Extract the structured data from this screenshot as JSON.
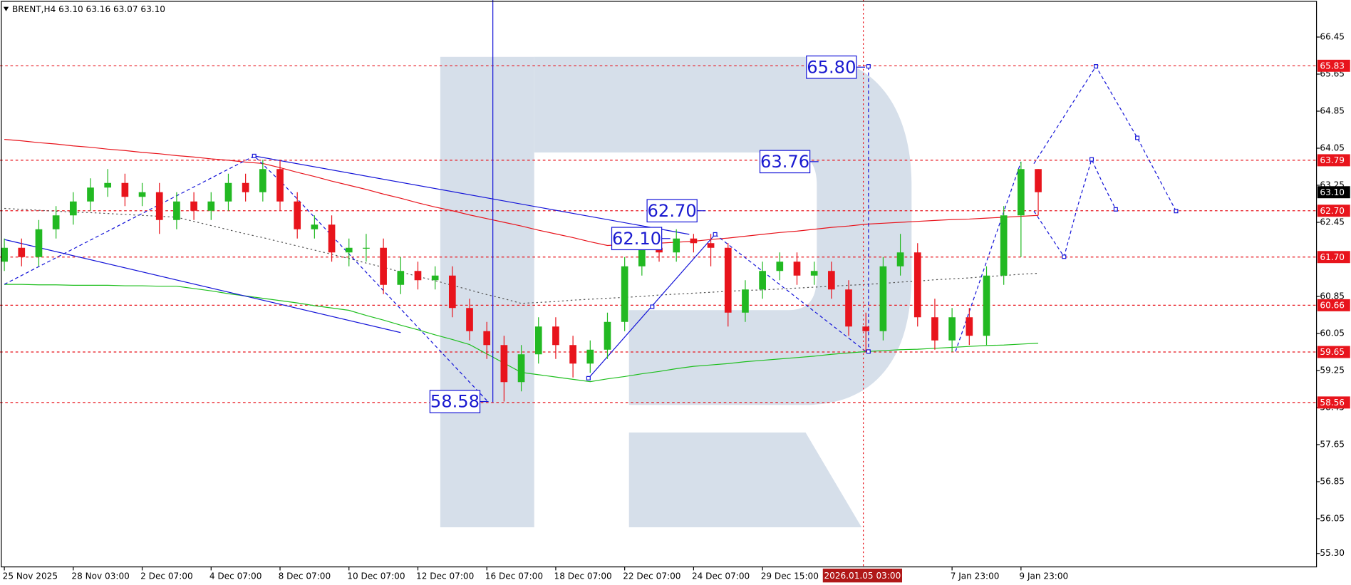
{
  "chart_data": {
    "type": "candlestick",
    "title": "BRENT,H4 63.10 63.16 63.07 63.10",
    "categories": [
      "25 Nov 2025",
      null,
      null,
      null,
      "28 Nov 03:00",
      null,
      null,
      null,
      "2 Dec 07:00",
      null,
      null,
      null,
      "4 Dec 07:00",
      null,
      null,
      null,
      "8 Dec 07:00",
      null,
      null,
      null,
      "10 Dec 07:00",
      null,
      null,
      null,
      "12 Dec 07:00",
      null,
      null,
      null,
      "16 Dec 07:00",
      null,
      null,
      null,
      "18 Dec 07:00",
      null,
      null,
      null,
      "22 Dec 07:00",
      null,
      null,
      null,
      "24 Dec 07:00",
      null,
      null,
      null,
      "29 Dec 15:00",
      null,
      null,
      null,
      null,
      null,
      null,
      null,
      null,
      null,
      null,
      "7 Jan 23:00",
      null,
      null,
      null,
      "9 Jan 23:00",
      null
    ],
    "open": [
      61.6,
      61.9,
      61.7,
      62.3,
      62.6,
      62.9,
      63.2,
      63.3,
      63.0,
      63.1,
      62.5,
      62.9,
      62.7,
      62.9,
      63.3,
      63.1,
      63.6,
      62.9,
      62.3,
      62.4,
      61.8,
      61.9,
      61.9,
      61.1,
      61.4,
      61.2,
      61.3,
      60.6,
      60.1,
      59.8,
      59.0,
      59.6,
      60.2,
      59.8,
      59.4,
      59.7,
      60.3,
      61.5,
      61.9,
      61.8,
      62.1,
      62.0,
      61.9,
      60.5,
      61.0,
      61.4,
      61.6,
      61.3,
      61.4,
      61.0,
      60.2,
      60.1,
      61.5,
      61.8,
      60.4,
      59.9,
      60.4,
      60.0,
      61.3,
      62.6,
      63.6
    ],
    "high": [
      62.1,
      62.1,
      62.5,
      62.8,
      63.1,
      63.4,
      63.6,
      63.5,
      63.3,
      63.3,
      63.1,
      63.1,
      63.1,
      63.5,
      63.5,
      63.8,
      63.8,
      63.1,
      62.6,
      62.6,
      62.1,
      62.2,
      62.1,
      61.7,
      61.6,
      61.5,
      61.5,
      60.8,
      60.3,
      60.0,
      59.8,
      60.4,
      60.4,
      60.0,
      59.9,
      60.5,
      61.7,
      62.1,
      62.1,
      62.3,
      62.2,
      62.2,
      62.0,
      61.2,
      61.6,
      61.8,
      61.8,
      61.6,
      61.6,
      61.2,
      60.5,
      61.7,
      62.2,
      62.0,
      60.8,
      60.6,
      60.6,
      61.5,
      62.8,
      63.76,
      63.6
    ],
    "low": [
      61.4,
      61.5,
      61.5,
      62.1,
      62.4,
      62.7,
      63.0,
      62.8,
      62.8,
      62.2,
      62.3,
      62.5,
      62.5,
      62.7,
      62.9,
      62.9,
      62.7,
      62.1,
      62.1,
      61.6,
      61.5,
      61.6,
      60.9,
      60.9,
      61.0,
      61.0,
      60.4,
      59.9,
      59.5,
      58.58,
      58.8,
      59.4,
      59.5,
      59.1,
      59.2,
      59.5,
      60.1,
      61.3,
      61.6,
      61.6,
      61.8,
      61.5,
      60.2,
      60.3,
      60.8,
      61.2,
      61.1,
      61.1,
      60.8,
      60.0,
      59.65,
      59.9,
      61.3,
      60.2,
      59.7,
      59.65,
      59.8,
      59.8,
      61.1,
      61.7,
      62.6
    ],
    "close": [
      61.9,
      61.7,
      62.3,
      62.6,
      62.9,
      63.2,
      63.3,
      63.0,
      63.1,
      62.5,
      62.9,
      62.7,
      62.9,
      63.3,
      63.1,
      63.6,
      62.9,
      62.3,
      62.4,
      61.8,
      61.9,
      61.9,
      61.1,
      61.4,
      61.2,
      61.3,
      60.6,
      60.1,
      59.8,
      59.0,
      59.6,
      60.2,
      59.8,
      59.4,
      59.7,
      60.3,
      61.5,
      61.9,
      61.8,
      62.1,
      62.0,
      61.9,
      60.5,
      61.0,
      61.4,
      61.6,
      61.3,
      61.4,
      61.0,
      60.2,
      60.1,
      61.5,
      61.8,
      60.4,
      59.9,
      60.4,
      60.0,
      61.3,
      62.6,
      63.6,
      63.1
    ],
    "up_color": "#22b922",
    "down_color": "#e8141c",
    "ylim": [
      55.01,
      67.25
    ],
    "yticks": [
      66.45,
      65.65,
      64.85,
      64.05,
      63.25,
      62.45,
      60.85,
      60.05,
      59.25,
      58.45,
      57.65,
      56.85,
      56.05,
      {
        "value": 55.3,
        "label": "55.30"
      }
    ],
    "lines": [
      {
        "color": "#e8141c",
        "values": [
          64.24,
          64.21,
          64.17,
          64.14,
          64.1,
          64.07,
          64.03,
          64.0,
          63.96,
          63.93,
          63.89,
          63.86,
          63.82,
          63.79,
          63.75,
          63.72,
          63.63,
          63.53,
          63.44,
          63.34,
          63.25,
          63.16,
          63.06,
          62.97,
          62.87,
          62.78,
          62.7,
          62.61,
          62.53,
          62.45,
          62.37,
          62.28,
          62.2,
          62.12,
          62.03,
          61.95,
          61.97,
          61.99,
          62.0,
          62.02,
          62.04,
          62.08,
          62.11,
          62.15,
          62.19,
          62.23,
          62.26,
          62.3,
          62.34,
          62.37,
          62.41,
          62.43,
          62.45,
          62.47,
          62.49,
          62.51,
          62.52,
          62.54,
          62.56,
          62.58,
          62.6
        ]
      },
      {
        "color": "#1fbf1f",
        "values": [
          61.11,
          61.11,
          61.1,
          61.1,
          61.09,
          61.09,
          61.09,
          61.08,
          61.08,
          61.07,
          61.07,
          61.02,
          60.97,
          60.91,
          60.86,
          60.81,
          60.76,
          60.71,
          60.65,
          60.6,
          60.55,
          60.44,
          60.34,
          60.23,
          60.13,
          60.02,
          59.92,
          59.81,
          59.61,
          59.41,
          59.21,
          59.16,
          59.11,
          59.06,
          59.01,
          59.07,
          59.12,
          59.18,
          59.23,
          59.29,
          59.34,
          59.37,
          59.4,
          59.44,
          59.47,
          59.5,
          59.53,
          59.56,
          59.6,
          59.63,
          59.66,
          59.68,
          59.7,
          59.71,
          59.73,
          59.75,
          59.77,
          59.79,
          59.8,
          59.82,
          59.84
        ]
      },
      {
        "color": "#555555",
        "dash": true,
        "values": [
          62.75,
          62.73,
          62.71,
          62.69,
          62.67,
          62.66,
          62.64,
          62.62,
          62.6,
          62.58,
          62.56,
          62.47,
          62.38,
          62.29,
          62.2,
          62.12,
          62.03,
          61.94,
          61.85,
          61.76,
          61.67,
          61.57,
          61.48,
          61.38,
          61.28,
          61.19,
          61.09,
          60.99,
          60.89,
          60.8,
          60.7,
          60.72,
          60.74,
          60.77,
          60.79,
          60.81,
          60.83,
          60.85,
          60.88,
          60.9,
          60.92,
          60.94,
          60.96,
          60.98,
          60.99,
          61.01,
          61.03,
          61.05,
          61.07,
          61.09,
          61.11,
          61.13,
          61.16,
          61.18,
          61.21,
          61.23,
          61.25,
          61.28,
          61.3,
          61.33,
          61.35
        ]
      }
    ],
    "levels": [
      {
        "value": 65.83,
        "label": "65.83",
        "color": "#e8141c"
      },
      {
        "value": 63.79,
        "label": "63.79",
        "color": "#e8141c"
      },
      {
        "value": 63.1,
        "label": "63.10",
        "color": "#000000",
        "line": false
      },
      {
        "value": 62.7,
        "label": "62.70",
        "color": "#e8141c"
      },
      {
        "value": 61.7,
        "label": "61.70",
        "color": "#e8141c"
      },
      {
        "value": 60.66,
        "label": "60.66",
        "color": "#e8141c"
      },
      {
        "value": 59.65,
        "label": "59.65",
        "color": "#e8141c"
      },
      {
        "value": 58.56,
        "label": "58.56",
        "color": "#e8141c"
      }
    ],
    "annotations": [
      {
        "value": 65.8,
        "label": "65.80"
      },
      {
        "value": 63.76,
        "label": "63.76"
      },
      {
        "value": 62.7,
        "label": "62.70"
      },
      {
        "value": 62.1,
        "label": "62.10"
      },
      {
        "value": 58.58,
        "label": "58.58"
      }
    ],
    "crosshair_label": "2026.01.05 03:00"
  }
}
